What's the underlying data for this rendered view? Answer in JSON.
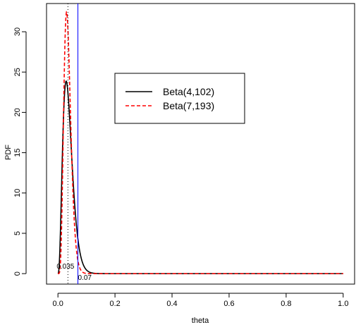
{
  "chart_data": {
    "type": "line",
    "title": "",
    "xlabel": "theta",
    "ylabel": "PDF",
    "xlim": [
      -0.04,
      1.04
    ],
    "ylim": [
      -1.3,
      33.5
    ],
    "x_ticks": [
      0.0,
      0.2,
      0.4,
      0.6,
      0.8,
      1.0
    ],
    "x_tick_labels": [
      "0.0",
      "0.2",
      "0.4",
      "0.6",
      "0.8",
      "1.0"
    ],
    "y_ticks": [
      0,
      5,
      10,
      15,
      20,
      25,
      30
    ],
    "y_tick_labels": [
      "0",
      "5",
      "10",
      "15",
      "20",
      "25",
      "30"
    ],
    "grid": false,
    "legend": {
      "position": "upper-center",
      "entries": [
        "Beta(4,102)",
        "Beta(7,193)"
      ]
    },
    "series": [
      {
        "name": "Beta(4,102)",
        "distribution": "beta",
        "alpha": 4,
        "beta": 102,
        "color": "#000000",
        "style": "solid",
        "peak": {
          "x": 0.0288,
          "y": 23.9
        }
      },
      {
        "name": "Beta(7,193)",
        "distribution": "beta",
        "alpha": 7,
        "beta": 193,
        "color": "#ff0000",
        "style": "dashed",
        "peak": {
          "x": 0.0303,
          "y": 32.3
        }
      }
    ],
    "reference_lines": [
      {
        "x": 0.035,
        "color": "#000000",
        "style": "dotted",
        "label": "0.035"
      },
      {
        "x": 0.07,
        "color": "#0000ff",
        "style": "solid",
        "label": "0.07"
      }
    ]
  }
}
